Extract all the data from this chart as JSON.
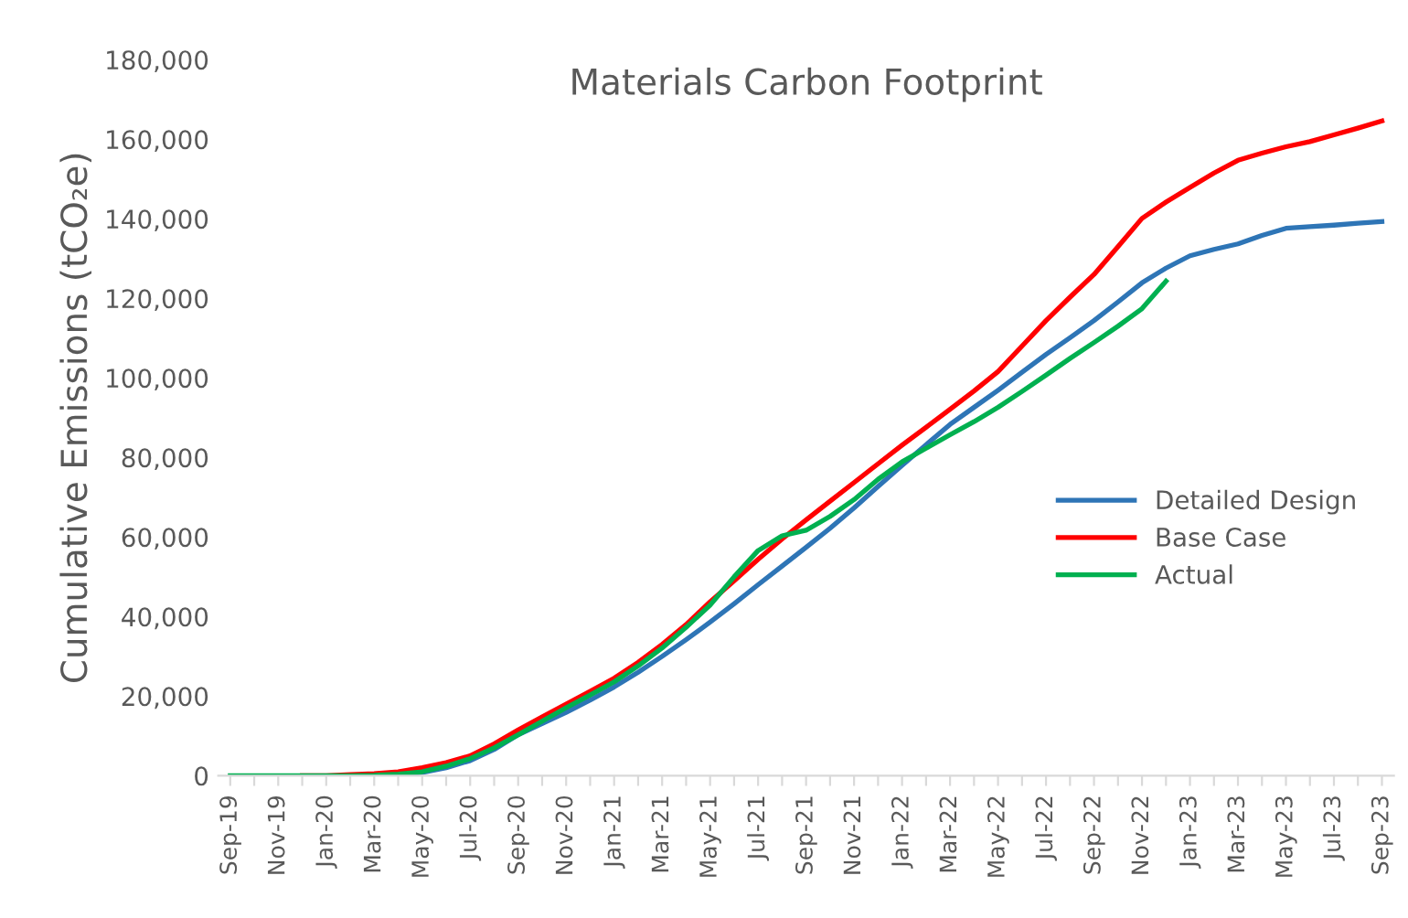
{
  "chart_data": {
    "type": "line",
    "title": "Materials Carbon Footprint",
    "ylabel": "Cumulative Emissions (tCO₂e)",
    "categories": [
      "Sep-19",
      null,
      "Nov-19",
      null,
      "Jan-20",
      null,
      "Mar-20",
      null,
      "May-20",
      null,
      "Jul-20",
      null,
      "Sep-20",
      null,
      "Nov-20",
      null,
      "Jan-21",
      null,
      "Mar-21",
      null,
      "May-21",
      null,
      "Jul-21",
      null,
      "Sep-21",
      null,
      "Nov-21",
      null,
      "Jan-22",
      null,
      "Mar-22",
      null,
      "May-22",
      null,
      "Jul-22",
      null,
      "Sep-22",
      null,
      "Nov-22",
      null,
      "Jan-23",
      null,
      "Mar-23",
      null,
      "May-23",
      null,
      "Jul-23",
      null,
      "Sep-23"
    ],
    "series": [
      {
        "name": "Detailed Design",
        "color": "#2e75b6",
        "values": [
          null,
          null,
          null,
          null,
          null,
          null,
          null,
          300,
          800,
          2000,
          3800,
          6600,
          10300,
          13100,
          15900,
          19000,
          22300,
          26000,
          30000,
          34200,
          38600,
          43200,
          48000,
          52700,
          57400,
          62200,
          67300,
          72700,
          78000,
          83200,
          88300,
          92600,
          96900,
          101400,
          105900,
          110100,
          114400,
          119100,
          123900,
          127600,
          130700,
          132300,
          133700,
          135800,
          137600,
          138000,
          138400,
          138900,
          139300
        ]
      },
      {
        "name": "Base Case",
        "color": "#ff0000",
        "values": [
          null,
          null,
          null,
          0,
          0,
          300,
          500,
          1000,
          2000,
          3300,
          5000,
          8000,
          11500,
          14800,
          18000,
          21200,
          24500,
          28500,
          33000,
          38000,
          43700,
          49000,
          54400,
          59500,
          64300,
          69000,
          73700,
          78400,
          83100,
          87600,
          92100,
          96700,
          101600,
          108000,
          114400,
          120300,
          126000,
          133000,
          140100,
          144200,
          147900,
          151500,
          154700,
          156500,
          158100,
          159400,
          161100,
          162800,
          164600
        ]
      },
      {
        "name": "Actual",
        "color": "#00b050",
        "values": [
          0,
          0,
          0,
          0,
          0,
          0,
          100,
          400,
          1000,
          2400,
          4300,
          7000,
          10300,
          13700,
          17100,
          20300,
          23600,
          27600,
          32100,
          37300,
          42900,
          50000,
          56600,
          60300,
          61700,
          65200,
          69400,
          74500,
          78900,
          82300,
          85700,
          89000,
          92600,
          96600,
          100700,
          104900,
          108900,
          113000,
          117400,
          124300,
          null,
          null,
          null,
          null,
          null,
          null,
          null,
          null,
          null
        ]
      }
    ],
    "ylim": [
      0,
      180000
    ],
    "yticks": [
      {
        "value": 0,
        "label": "0"
      },
      {
        "value": 20000,
        "label": "20,000"
      },
      {
        "value": 40000,
        "label": "40,000"
      },
      {
        "value": 60000,
        "label": "60,000"
      },
      {
        "value": 80000,
        "label": "80,000"
      },
      {
        "value": 100000,
        "label": "100,000"
      },
      {
        "value": 120000,
        "label": "120,000"
      },
      {
        "value": 140000,
        "label": "140,000"
      },
      {
        "value": 160000,
        "label": "160,000"
      },
      {
        "value": 180000,
        "label": "180,000"
      }
    ],
    "legend": "center right",
    "grid": false,
    "marker": "none",
    "line_style": "solid"
  }
}
